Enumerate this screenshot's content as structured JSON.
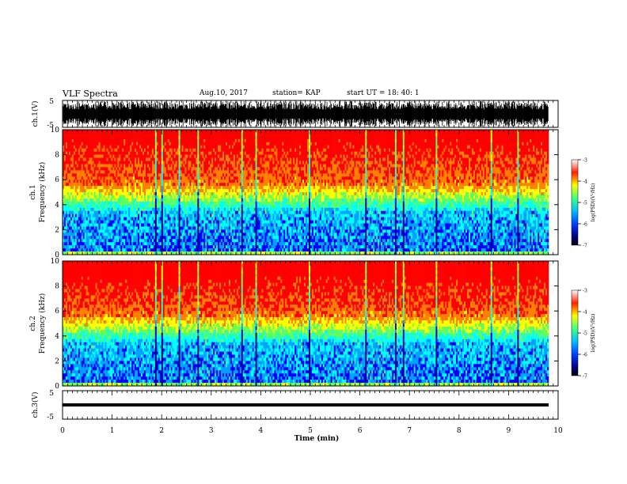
{
  "header": {
    "title": "VLF Spectra",
    "date": "Aug.10, 2017",
    "station": "station= KAP",
    "start_ut": "start  UT  =   18: 40: 1"
  },
  "panels": {
    "ch1_wave_label": "ch.1(V)",
    "ch1_spec_label": "ch.1",
    "ch2_spec_label": "ch.2",
    "freq_label": "Frequency  (kHz)",
    "ch3_wave_label": "ch.3(V)",
    "colorbar_label": "log(PSD)(V²/Hz)",
    "x_label": "Time  (min)"
  },
  "colors": {
    "cmap": [
      "#000080",
      "#0000ff",
      "#00a0ff",
      "#00ffff",
      "#60ff60",
      "#ffff00",
      "#ff8000",
      "#ff0000",
      "#ffffff"
    ]
  },
  "chart_data": [
    {
      "type": "line",
      "name": "ch.1 waveform",
      "ylabel": "ch.1(V)",
      "yticks": [
        "5",
        "-5"
      ],
      "ylim": [
        -5,
        5
      ],
      "xlim": [
        0,
        10
      ]
    },
    {
      "type": "heatmap",
      "name": "ch.1 spectrogram",
      "ylabel": "Frequency  (kHz)",
      "xlim": [
        0,
        10
      ],
      "ylim": [
        0,
        10
      ],
      "yticks": [
        "0",
        "2",
        "4",
        "6",
        "8",
        "10"
      ],
      "colorbar": {
        "ticks": [
          "-3",
          "-4",
          "-5",
          "-6",
          "-7"
        ],
        "range": [
          -7,
          -3
        ]
      }
    },
    {
      "type": "heatmap",
      "name": "ch.2 spectrogram",
      "ylabel": "Frequency  (kHz)",
      "xlim": [
        0,
        10
      ],
      "ylim": [
        0,
        10
      ],
      "yticks": [
        "0",
        "2",
        "4",
        "6",
        "8",
        "10"
      ],
      "colorbar": {
        "ticks": [
          "-3",
          "-4",
          "-5",
          "-6",
          "-7"
        ],
        "range": [
          -7,
          -3
        ]
      }
    },
    {
      "type": "line",
      "name": "ch.3 waveform",
      "ylabel": "ch.3(V)",
      "yticks": [
        "5",
        "-5"
      ],
      "ylim": [
        -5,
        5
      ],
      "xlim": [
        0,
        10
      ]
    }
  ],
  "x_axis": {
    "ticks": [
      "0",
      "1",
      "2",
      "3",
      "4",
      "5",
      "6",
      "7",
      "8",
      "9",
      "10"
    ],
    "label": "Time  (min)",
    "range": [
      0,
      10
    ]
  }
}
